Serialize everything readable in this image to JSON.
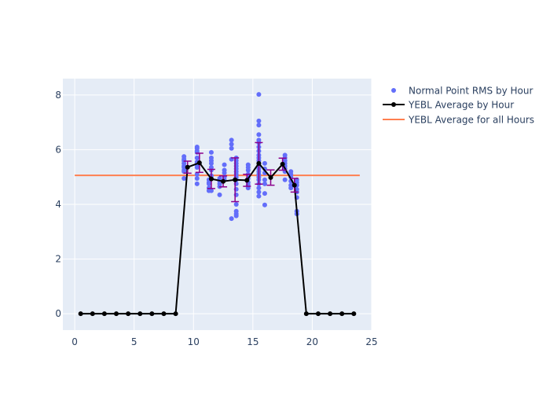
{
  "chart_data": {
    "type": "scatter",
    "xlim": [
      -1,
      25
    ],
    "ylim": [
      -0.6,
      8.6
    ],
    "x_ticks": [
      0,
      5,
      10,
      15,
      20,
      25
    ],
    "y_ticks": [
      0,
      2,
      4,
      6,
      8
    ],
    "grid": true,
    "legend_position": "top-right",
    "colors": {
      "plot_bg": "#E5ECF6",
      "grid": "#FFFFFF",
      "points": "#636EFA",
      "avg_line": "#000000",
      "error_bars": "#8B008B",
      "overall_line": "#FF7F50",
      "text": "#2A3F5F"
    },
    "series": [
      {
        "name": "Normal Point RMS by Hour",
        "mode": "markers",
        "points": [
          [
            9.2,
            5.75
          ],
          [
            9.2,
            5.65
          ],
          [
            9.2,
            5.6
          ],
          [
            9.2,
            5.5
          ],
          [
            9.2,
            5.4
          ],
          [
            9.2,
            5.35
          ],
          [
            9.2,
            5.25
          ],
          [
            9.2,
            5.2
          ],
          [
            9.2,
            4.95
          ],
          [
            9.3,
            5.3
          ],
          [
            10.3,
            6.1
          ],
          [
            10.3,
            6.05
          ],
          [
            10.3,
            5.95
          ],
          [
            10.3,
            5.9
          ],
          [
            10.3,
            5.7
          ],
          [
            10.3,
            5.55
          ],
          [
            10.3,
            5.45
          ],
          [
            10.3,
            5.35
          ],
          [
            10.3,
            5.1
          ],
          [
            10.3,
            4.95
          ],
          [
            10.3,
            4.75
          ],
          [
            11.3,
            4.5
          ],
          [
            11.3,
            4.6
          ],
          [
            11.3,
            4.75
          ],
          [
            11.3,
            4.8
          ],
          [
            11.3,
            4.9
          ],
          [
            11.5,
            5.9
          ],
          [
            11.5,
            5.7
          ],
          [
            11.5,
            5.6
          ],
          [
            11.5,
            5.5
          ],
          [
            11.5,
            5.35
          ],
          [
            11.5,
            5.25
          ],
          [
            11.5,
            5.05
          ],
          [
            11.5,
            4.95
          ],
          [
            11.5,
            4.5
          ],
          [
            12.2,
            4.35
          ],
          [
            12.2,
            4.65
          ],
          [
            12.2,
            4.75
          ],
          [
            12.2,
            4.85
          ],
          [
            12.2,
            4.95
          ],
          [
            12.6,
            5.45
          ],
          [
            12.6,
            5.25
          ],
          [
            12.6,
            5.15
          ],
          [
            12.6,
            5.0
          ],
          [
            12.6,
            4.9
          ],
          [
            13.2,
            6.35
          ],
          [
            13.2,
            6.2
          ],
          [
            13.2,
            6.05
          ],
          [
            13.2,
            5.65
          ],
          [
            13.2,
            3.48
          ],
          [
            13.6,
            5.7
          ],
          [
            13.6,
            5.6
          ],
          [
            13.6,
            5.5
          ],
          [
            13.6,
            5.4
          ],
          [
            13.6,
            5.3
          ],
          [
            13.6,
            5.2
          ],
          [
            13.6,
            5.1
          ],
          [
            13.6,
            5.0
          ],
          [
            13.6,
            4.9
          ],
          [
            13.6,
            4.75
          ],
          [
            13.6,
            4.55
          ],
          [
            13.6,
            4.35
          ],
          [
            13.6,
            4.0
          ],
          [
            13.6,
            3.75
          ],
          [
            13.6,
            3.65
          ],
          [
            13.6,
            3.58
          ],
          [
            14.6,
            5.45
          ],
          [
            14.6,
            5.35
          ],
          [
            14.6,
            5.25
          ],
          [
            14.6,
            5.1
          ],
          [
            14.6,
            4.95
          ],
          [
            14.6,
            4.8
          ],
          [
            14.6,
            4.7
          ],
          [
            14.6,
            4.6
          ],
          [
            15.5,
            8.02
          ],
          [
            15.5,
            7.05
          ],
          [
            15.5,
            6.9
          ],
          [
            15.5,
            6.55
          ],
          [
            15.5,
            6.35
          ],
          [
            15.5,
            6.25
          ],
          [
            15.5,
            6.1
          ],
          [
            15.5,
            5.95
          ],
          [
            15.5,
            5.8
          ],
          [
            15.5,
            5.7
          ],
          [
            15.5,
            5.6
          ],
          [
            15.5,
            5.5
          ],
          [
            15.5,
            5.4
          ],
          [
            15.5,
            5.3
          ],
          [
            15.5,
            5.2
          ],
          [
            15.5,
            5.1
          ],
          [
            15.5,
            5.0
          ],
          [
            15.5,
            4.9
          ],
          [
            15.5,
            4.75
          ],
          [
            15.5,
            4.6
          ],
          [
            15.5,
            4.45
          ],
          [
            15.5,
            4.3
          ],
          [
            16.0,
            5.5
          ],
          [
            16.0,
            5.3
          ],
          [
            16.0,
            5.15
          ],
          [
            16.0,
            4.9
          ],
          [
            16.0,
            4.75
          ],
          [
            16.0,
            4.4
          ],
          [
            16.0,
            3.98
          ],
          [
            17.7,
            5.8
          ],
          [
            17.7,
            5.7
          ],
          [
            17.7,
            5.6
          ],
          [
            17.7,
            5.5
          ],
          [
            17.7,
            5.4
          ],
          [
            17.7,
            5.3
          ],
          [
            17.7,
            5.2
          ],
          [
            17.7,
            4.9
          ],
          [
            18.2,
            5.2
          ],
          [
            18.2,
            5.1
          ],
          [
            18.2,
            5.0
          ],
          [
            18.2,
            4.85
          ],
          [
            18.2,
            4.7
          ],
          [
            18.2,
            4.6
          ],
          [
            18.7,
            4.9
          ],
          [
            18.7,
            4.8
          ],
          [
            18.7,
            4.7
          ],
          [
            18.7,
            4.55
          ],
          [
            18.7,
            4.45
          ],
          [
            18.7,
            4.25
          ],
          [
            18.7,
            3.75
          ],
          [
            18.7,
            3.65
          ]
        ]
      },
      {
        "name": "YEBL Average by Hour",
        "mode": "lines+markers",
        "points": [
          [
            0.5,
            0
          ],
          [
            1.5,
            0
          ],
          [
            2.5,
            0
          ],
          [
            3.5,
            0
          ],
          [
            4.5,
            0
          ],
          [
            5.5,
            0
          ],
          [
            6.5,
            0
          ],
          [
            7.5,
            0
          ],
          [
            8.5,
            0
          ],
          [
            9.5,
            5.36
          ],
          [
            10.5,
            5.52
          ],
          [
            11.5,
            4.93
          ],
          [
            12.5,
            4.84
          ],
          [
            13.5,
            4.9
          ],
          [
            14.5,
            4.88
          ],
          [
            15.5,
            5.5
          ],
          [
            16.5,
            4.98
          ],
          [
            17.5,
            5.47
          ],
          [
            18.5,
            4.7
          ],
          [
            19.5,
            0
          ],
          [
            20.5,
            0
          ],
          [
            21.5,
            0
          ],
          [
            22.5,
            0
          ],
          [
            23.5,
            0
          ]
        ],
        "error_bars": [
          [
            9.5,
            0.22
          ],
          [
            10.5,
            0.35
          ],
          [
            11.5,
            0.35
          ],
          [
            12.5,
            0.2
          ],
          [
            13.5,
            0.8
          ],
          [
            14.5,
            0.22
          ],
          [
            15.5,
            0.76
          ],
          [
            16.5,
            0.28
          ],
          [
            17.5,
            0.22
          ],
          [
            18.5,
            0.25
          ]
        ]
      },
      {
        "name": "YEBL Average for all Hours",
        "mode": "lines",
        "points": [
          [
            0,
            5.06
          ],
          [
            24,
            5.06
          ]
        ]
      }
    ]
  }
}
